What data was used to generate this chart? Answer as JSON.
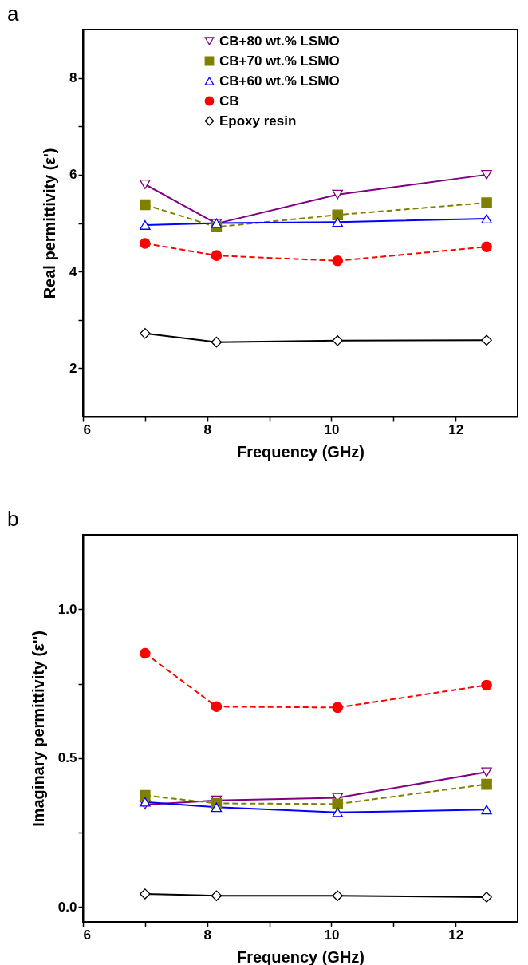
{
  "chart_data": [
    {
      "type": "line",
      "title": "a",
      "xlabel": "Frequency (GHz)",
      "ylabel": "Real permittivity (ε')",
      "legend": "top",
      "x": [
        7.0,
        8.15,
        10.1,
        12.5
      ],
      "xlim": [
        6,
        13
      ],
      "xticks": [
        6,
        {
          "value": 7,
          "label": null
        },
        8,
        {
          "value": 9,
          "label": null
        },
        10,
        {
          "value": 11,
          "label": null
        },
        12
      ],
      "ylim": [
        1,
        9
      ],
      "yticks": [
        2,
        {
          "value": 3,
          "label": null
        },
        4,
        {
          "value": 5,
          "label": null
        },
        6,
        {
          "value": 7,
          "label": null
        },
        8
      ],
      "series": [
        {
          "name": "CB+80 wt.% LSMO",
          "color": "#800080",
          "marker": "triangle-down",
          "line_style": "solid",
          "values": [
            5.8,
            4.99,
            5.59,
            6.0
          ]
        },
        {
          "name": "CB+70 wt.% LSMO",
          "color": "#808000",
          "marker": "square",
          "line_style": "dashed",
          "values": [
            5.38,
            4.92,
            5.17,
            5.42
          ]
        },
        {
          "name": "CB+60 wt.% LSMO",
          "color": "#0000ff",
          "marker": "triangle",
          "line_style": "solid",
          "values": [
            4.96,
            5.0,
            5.02,
            5.09
          ]
        },
        {
          "name": "CB",
          "color": "#ff0000",
          "marker": "circle",
          "line_style": "dashed",
          "values": [
            4.58,
            4.33,
            4.22,
            4.51
          ]
        },
        {
          "name": "Epoxy resin",
          "color": "#000000",
          "marker": "diamond",
          "line_style": "solid",
          "values": [
            2.72,
            2.54,
            2.57,
            2.58
          ]
        }
      ]
    },
    {
      "type": "line",
      "title": "b",
      "xlabel": "Frequency (GHz)",
      "ylabel": "Imaginary permittivity (ε'')",
      "legend": "top",
      "x": [
        7.0,
        8.15,
        10.1,
        12.5
      ],
      "xlim": [
        6,
        13
      ],
      "xticks": [
        6,
        {
          "value": 7,
          "label": null
        },
        8,
        {
          "value": 9,
          "label": null
        },
        10,
        {
          "value": 11,
          "label": null
        },
        12
      ],
      "ylim": [
        -0.05,
        1.25
      ],
      "yticks": [
        {
          "value": 0,
          "label": "0.0"
        },
        {
          "value": 0.25,
          "label": null
        },
        {
          "value": 0.5,
          "label": "0.5"
        },
        {
          "value": 0.75,
          "label": null
        },
        {
          "value": 1,
          "label": "1.0"
        }
      ],
      "series": [
        {
          "name": "CB+80 wt.% LSMO",
          "color": "#800080",
          "marker": "triangle-down",
          "line_style": "solid",
          "values": [
            0.344,
            0.358,
            0.367,
            0.453
          ]
        },
        {
          "name": "CB+70 wt.% LSMO",
          "color": "#808000",
          "marker": "square",
          "line_style": "dashed",
          "values": [
            0.375,
            0.348,
            0.346,
            0.412
          ]
        },
        {
          "name": "CB+60 wt.% LSMO",
          "color": "#0000ff",
          "marker": "triangle",
          "line_style": "solid",
          "values": [
            0.353,
            0.335,
            0.318,
            0.327
          ]
        },
        {
          "name": "CB",
          "color": "#ff0000",
          "marker": "circle",
          "line_style": "dashed",
          "values": [
            0.852,
            0.673,
            0.67,
            0.745
          ]
        },
        {
          "name": "Epoxy resin",
          "color": "#000000",
          "marker": "diamond",
          "line_style": "solid",
          "values": [
            0.044,
            0.038,
            0.038,
            0.033
          ]
        }
      ]
    }
  ]
}
